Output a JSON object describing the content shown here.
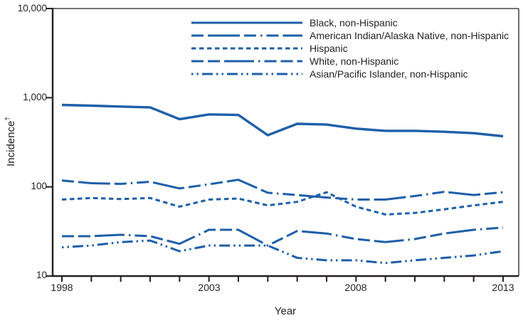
{
  "figure": {
    "ylabel": "Incidence",
    "ylabel_dagger": "†"
  },
  "colors": {
    "line": "#1e5fa9",
    "axis": "#231f20",
    "text": "#231f20",
    "background": "#ffffff"
  },
  "chart_data": {
    "type": "line",
    "title": "",
    "xlabel": "Year",
    "ylabel": "Incidence†",
    "y_scale": "log",
    "ylim": [
      10,
      10000
    ],
    "grid": false,
    "legend_position": "top-inside",
    "x": [
      1998,
      1999,
      2000,
      2001,
      2002,
      2003,
      2004,
      2005,
      2006,
      2007,
      2008,
      2009,
      2010,
      2011,
      2012,
      2013
    ],
    "x_labeled_ticks": [
      1998,
      2003,
      2008,
      2013
    ],
    "x_tick_labels": [
      "1998",
      "2003",
      "2008",
      "2013"
    ],
    "y_ticks": [
      10,
      100,
      1000,
      10000
    ],
    "y_tick_labels": [
      "10",
      "100",
      "1,000",
      "10,000"
    ],
    "series": [
      {
        "name": "Black, non-Hispanic",
        "pattern": "solid",
        "values": [
          830,
          815,
          795,
          780,
          575,
          650,
          640,
          380,
          510,
          500,
          450,
          425,
          425,
          415,
          400,
          370
        ]
      },
      {
        "name": "American Indian/Alaska Native, non-Hispanic",
        "pattern": "dash-long-short",
        "values": [
          118,
          110,
          108,
          114,
          96,
          107,
          120,
          86,
          81,
          76,
          72,
          72,
          79,
          88,
          81,
          87
        ]
      },
      {
        "name": "Hispanic",
        "pattern": "dash-short",
        "values": [
          72,
          75,
          73,
          75,
          60,
          72,
          74,
          62,
          68,
          87,
          60,
          49,
          51,
          56,
          62,
          68
        ]
      },
      {
        "name": "White, non-Hispanic",
        "pattern": "dash-long",
        "values": [
          28,
          28,
          29,
          28,
          23,
          33,
          33,
          22,
          32,
          30,
          26,
          24,
          26,
          30,
          33,
          35
        ]
      },
      {
        "name": "Asian/Pacific Islander, non-Hispanic",
        "pattern": "dash-dot-dot",
        "values": [
          21,
          22,
          24,
          25,
          19,
          22,
          22,
          22,
          16,
          15,
          15,
          14,
          15,
          16,
          17,
          19
        ]
      }
    ]
  }
}
